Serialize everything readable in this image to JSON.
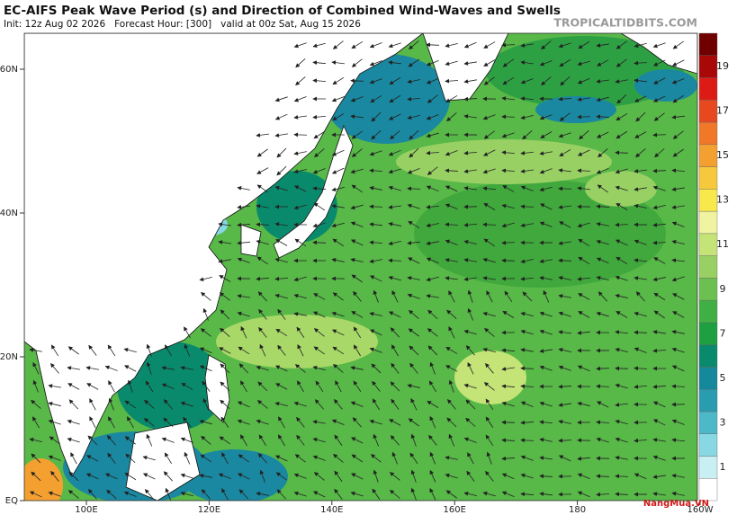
{
  "header": {
    "title": "EC-AIFS Peak Wave Period (s) and Direction of Combined Wind-Waves and Swells",
    "subtitle": "Init: 12z Aug 02 2026   Forecast Hour: [300]   valid at 00z Sat, Aug 15 2026",
    "source": "TROPICALTIDBITS.COM"
  },
  "map": {
    "lat_labels": [
      "60N",
      "40N",
      "20N",
      "EQ"
    ],
    "lon_labels": [
      "100E",
      "120E",
      "140E",
      "160E",
      "180",
      "160W"
    ]
  },
  "colorbar": {
    "labels": [
      1,
      3,
      5,
      7,
      9,
      11,
      13,
      15,
      17,
      19
    ],
    "colors": [
      "#ffffff",
      "#c8f0f4",
      "#88d8e4",
      "#4cb8c8",
      "#2a9cb0",
      "#16889c",
      "#0a8a6c",
      "#1ea040",
      "#40b044",
      "#6cc050",
      "#98d064",
      "#c4e478",
      "#f0f4a0",
      "#f8e84c",
      "#f8c83c",
      "#f4a030",
      "#f07828",
      "#e84820",
      "#dc1c14",
      "#a80808",
      "#700000"
    ]
  },
  "watermark": "NangMua.VN"
}
